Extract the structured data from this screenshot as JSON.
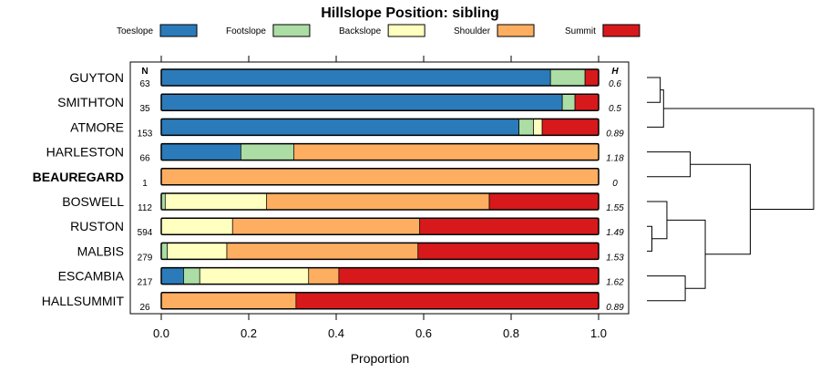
{
  "chart_data": {
    "type": "bar",
    "orientation": "horizontal-stacked",
    "title": "Hillslope Position: sibling",
    "xlabel": "Proportion",
    "ylabel": "",
    "xlim": [
      0,
      1
    ],
    "xticks": [
      "0.0",
      "0.2",
      "0.4",
      "0.6",
      "0.8",
      "1.0"
    ],
    "xtick_values": [
      0,
      0.2,
      0.4,
      0.6,
      0.8,
      1.0
    ],
    "n_header": "N",
    "h_header": "H",
    "legend": [
      {
        "name": "Toeslope",
        "color": "#2b7bba"
      },
      {
        "name": "Footslope",
        "color": "#abdda4"
      },
      {
        "name": "Backslope",
        "color": "#ffffbf"
      },
      {
        "name": "Shoulder",
        "color": "#fdae61"
      },
      {
        "name": "Summit",
        "color": "#d7191c"
      }
    ],
    "categories": [
      "GUYTON",
      "SMITHTON",
      "ATMORE",
      "HARLESTON",
      "BEAUREGARD",
      "BOSWELL",
      "RUSTON",
      "MALBIS",
      "ESCAMBIA",
      "HALLSUMMIT"
    ],
    "highlight": "BEAUREGARD",
    "n": [
      "63",
      "35",
      "153",
      "66",
      "1",
      "112",
      "594",
      "279",
      "217",
      "26"
    ],
    "h": [
      "0.6",
      "0.5",
      "0.89",
      "1.18",
      "0",
      "1.55",
      "1.49",
      "1.53",
      "1.62",
      "0.89"
    ],
    "series": [
      {
        "name": "Toeslope",
        "values": [
          0.89,
          0.917,
          0.818,
          0.182,
          0,
          0,
          0,
          0,
          0.051,
          0
        ]
      },
      {
        "name": "Footslope",
        "values": [
          0.079,
          0.029,
          0.033,
          0.121,
          0,
          0.009,
          0,
          0.014,
          0.037,
          0
        ]
      },
      {
        "name": "Backslope",
        "values": [
          0,
          0,
          0.02,
          0,
          0,
          0.232,
          0.163,
          0.136,
          0.249,
          0
        ]
      },
      {
        "name": "Shoulder",
        "values": [
          0,
          0,
          0,
          0.697,
          1.0,
          0.509,
          0.428,
          0.437,
          0.069,
          0.308
        ]
      },
      {
        "name": "Summit",
        "values": [
          0.031,
          0.054,
          0.129,
          0,
          0,
          0.25,
          0.409,
          0.413,
          0.594,
          0.692
        ]
      }
    ],
    "dendrogram": {
      "merges": [
        {
          "left": "GUYTON",
          "right": "SMITHTON",
          "height": 0.08
        },
        {
          "left": "RUSTON",
          "right": "MALBIS",
          "height": 0.03
        },
        {
          "left": "HARLESTON",
          "right": "BEAUREGARD",
          "height": 0.26
        },
        {
          "left": "BOSWELL",
          "right": "c2",
          "height": 0.12
        },
        {
          "left": "ESCAMBIA",
          "right": "HALLSUMMIT",
          "height": 0.23
        },
        {
          "left": "ATMORE",
          "right": "c1",
          "height": 0.1
        },
        {
          "left": "c4",
          "right": "c5",
          "height": 0.35
        },
        {
          "left": "c3",
          "right": "c7",
          "height": 0.62
        },
        {
          "left": "c6",
          "right": "c8",
          "height": 1.0
        }
      ]
    }
  }
}
